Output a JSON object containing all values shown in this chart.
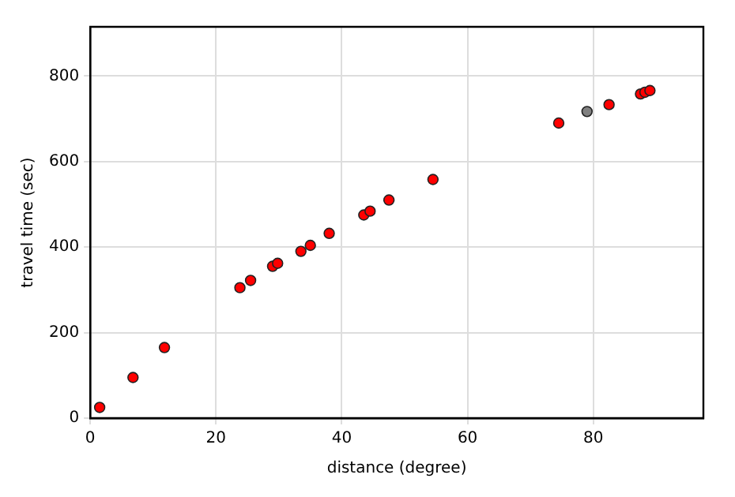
{
  "chart_data": {
    "type": "scatter",
    "xlabel": "distance (degree)",
    "ylabel": "travel time (sec)",
    "xlim": [
      0,
      97.5
    ],
    "ylim": [
      0,
      915
    ],
    "xticks": [
      0,
      20,
      40,
      60,
      80
    ],
    "yticks": [
      0,
      200,
      400,
      600,
      800
    ],
    "grid": true,
    "legend": false,
    "marker": "circle",
    "series": [
      {
        "color": "#ff0000",
        "x": [
          1.5,
          6.8,
          11.8,
          23.8,
          25.5,
          29,
          29.8,
          33.5,
          35,
          38,
          43.5,
          44.5,
          47.5,
          54.5,
          74.5,
          82.5,
          87.5,
          88.2,
          89
        ],
        "values": [
          25,
          95,
          165,
          305,
          322,
          355,
          362,
          390,
          404,
          432,
          475,
          484,
          510,
          558,
          690,
          733,
          758,
          762,
          766
        ]
      },
      {
        "color": "#808080",
        "x": [
          79
        ],
        "values": [
          717
        ]
      }
    ]
  }
}
